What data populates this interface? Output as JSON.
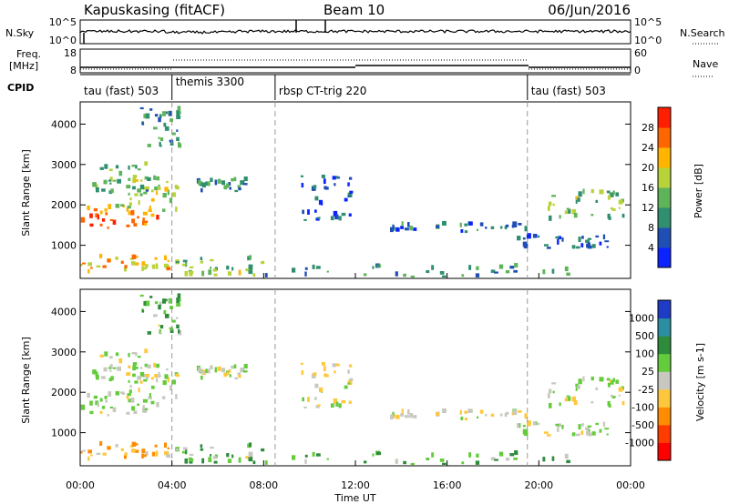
{
  "header": {
    "station": "Kapuskasing (fitACF)",
    "beam": "Beam 10",
    "date": "06/Jun/2016"
  },
  "top_panels": {
    "nsky_label": "N.Sky",
    "nsky_ticks": [
      "10^5",
      "10^0"
    ],
    "nsearch_label": "N.Search",
    "freq_label_1": "Freq.",
    "freq_label_2": "[MHz]",
    "freq_ticks": [
      "18",
      "8"
    ],
    "nave_label": "Nave",
    "nave_ticks": [
      "60",
      "0"
    ],
    "cpid_label": "CPID"
  },
  "programs": [
    {
      "label": "tau (fast) 503",
      "start_hour": 0
    },
    {
      "label": "themis 3300",
      "start_hour": 4
    },
    {
      "label": "rbsp CT-trig 220",
      "start_hour": 8.5
    },
    {
      "label": "tau (fast) 503",
      "start_hour": 19.5
    }
  ],
  "x_axis": {
    "label": "Time UT",
    "ticks": [
      "00:00",
      "04:00",
      "08:00",
      "12:00",
      "16:00",
      "20:00",
      "00:00"
    ]
  },
  "power_panel": {
    "ylabel": "Slant Range [km]",
    "yticks": [
      "1000",
      "2000",
      "3000",
      "4000"
    ],
    "colorbar_label": "Power [dB]",
    "colorbar_ticks": [
      "4",
      "8",
      "12",
      "16",
      "20",
      "24",
      "28"
    ],
    "colors": [
      "#0a23ff",
      "#1f4fb4",
      "#2f8f6e",
      "#5fb45a",
      "#b8d23a",
      "#ffb400",
      "#ff6600",
      "#ff1e00"
    ]
  },
  "velocity_panel": {
    "ylabel": "Slant Range [km]",
    "yticks": [
      "1000",
      "2000",
      "3000",
      "4000"
    ],
    "colorbar_label": "Velocity [m s-1]",
    "colorbar_ticks": [
      "1000",
      "500",
      "100",
      "25",
      "-25",
      "-100",
      "-500",
      "-1000"
    ],
    "colors": [
      "#1f3cc8",
      "#2a8fa0",
      "#2e8b3c",
      "#64cc3c",
      "#c8c8c0",
      "#ffc83c",
      "#ff8c00",
      "#ff3c00",
      "#ff0000"
    ]
  },
  "chart_data": {
    "type": "heatmap",
    "x_unit": "hours UT",
    "x_range": [
      0,
      24
    ],
    "y_unit": "km",
    "y_range": [
      180,
      4550
    ],
    "power_dB_range": [
      0,
      30
    ],
    "velocity_range": [
      -1000,
      1000
    ],
    "scatter_bands": [
      {
        "t_start": 0.0,
        "t_end": 3.4,
        "range_start": 1400,
        "range_end": 1900,
        "power_dB": 24,
        "velocity": 25
      },
      {
        "t_start": 1.5,
        "t_end": 4.2,
        "range_start": 1800,
        "range_end": 2700,
        "power_dB": 16,
        "velocity": 25
      },
      {
        "t_start": 0.5,
        "t_end": 3.0,
        "range_start": 2200,
        "range_end": 3000,
        "power_dB": 12,
        "velocity": 25
      },
      {
        "t_start": 2.5,
        "t_end": 4.4,
        "range_start": 3400,
        "range_end": 4500,
        "power_dB": 10,
        "velocity": 100
      },
      {
        "t_start": 5.0,
        "t_end": 7.2,
        "range_start": 2300,
        "range_end": 2600,
        "power_dB": 10,
        "velocity": 25
      },
      {
        "t_start": 0.0,
        "t_end": 4.0,
        "range_start": 250,
        "range_end": 700,
        "power_dB": 20,
        "velocity": -100
      },
      {
        "t_start": 4.0,
        "t_end": 8.0,
        "range_start": 220,
        "range_end": 650,
        "power_dB": 14,
        "velocity": 100
      },
      {
        "t_start": 8.0,
        "t_end": 21.2,
        "range_start": 200,
        "range_end": 480,
        "power_dB": 10,
        "velocity": 100
      },
      {
        "t_start": 9.5,
        "t_end": 11.8,
        "range_start": 1600,
        "range_end": 2700,
        "power_dB": 6,
        "velocity": -25
      },
      {
        "t_start": 13.5,
        "t_end": 19.5,
        "range_start": 1300,
        "range_end": 1500,
        "power_dB": 8,
        "velocity": -25
      },
      {
        "t_start": 20.2,
        "t_end": 24.0,
        "range_start": 1600,
        "range_end": 2300,
        "power_dB": 14,
        "velocity": 25
      },
      {
        "t_start": 19.0,
        "t_end": 23.0,
        "range_start": 900,
        "range_end": 1200,
        "power_dB": 6,
        "velocity": 25
      }
    ]
  }
}
